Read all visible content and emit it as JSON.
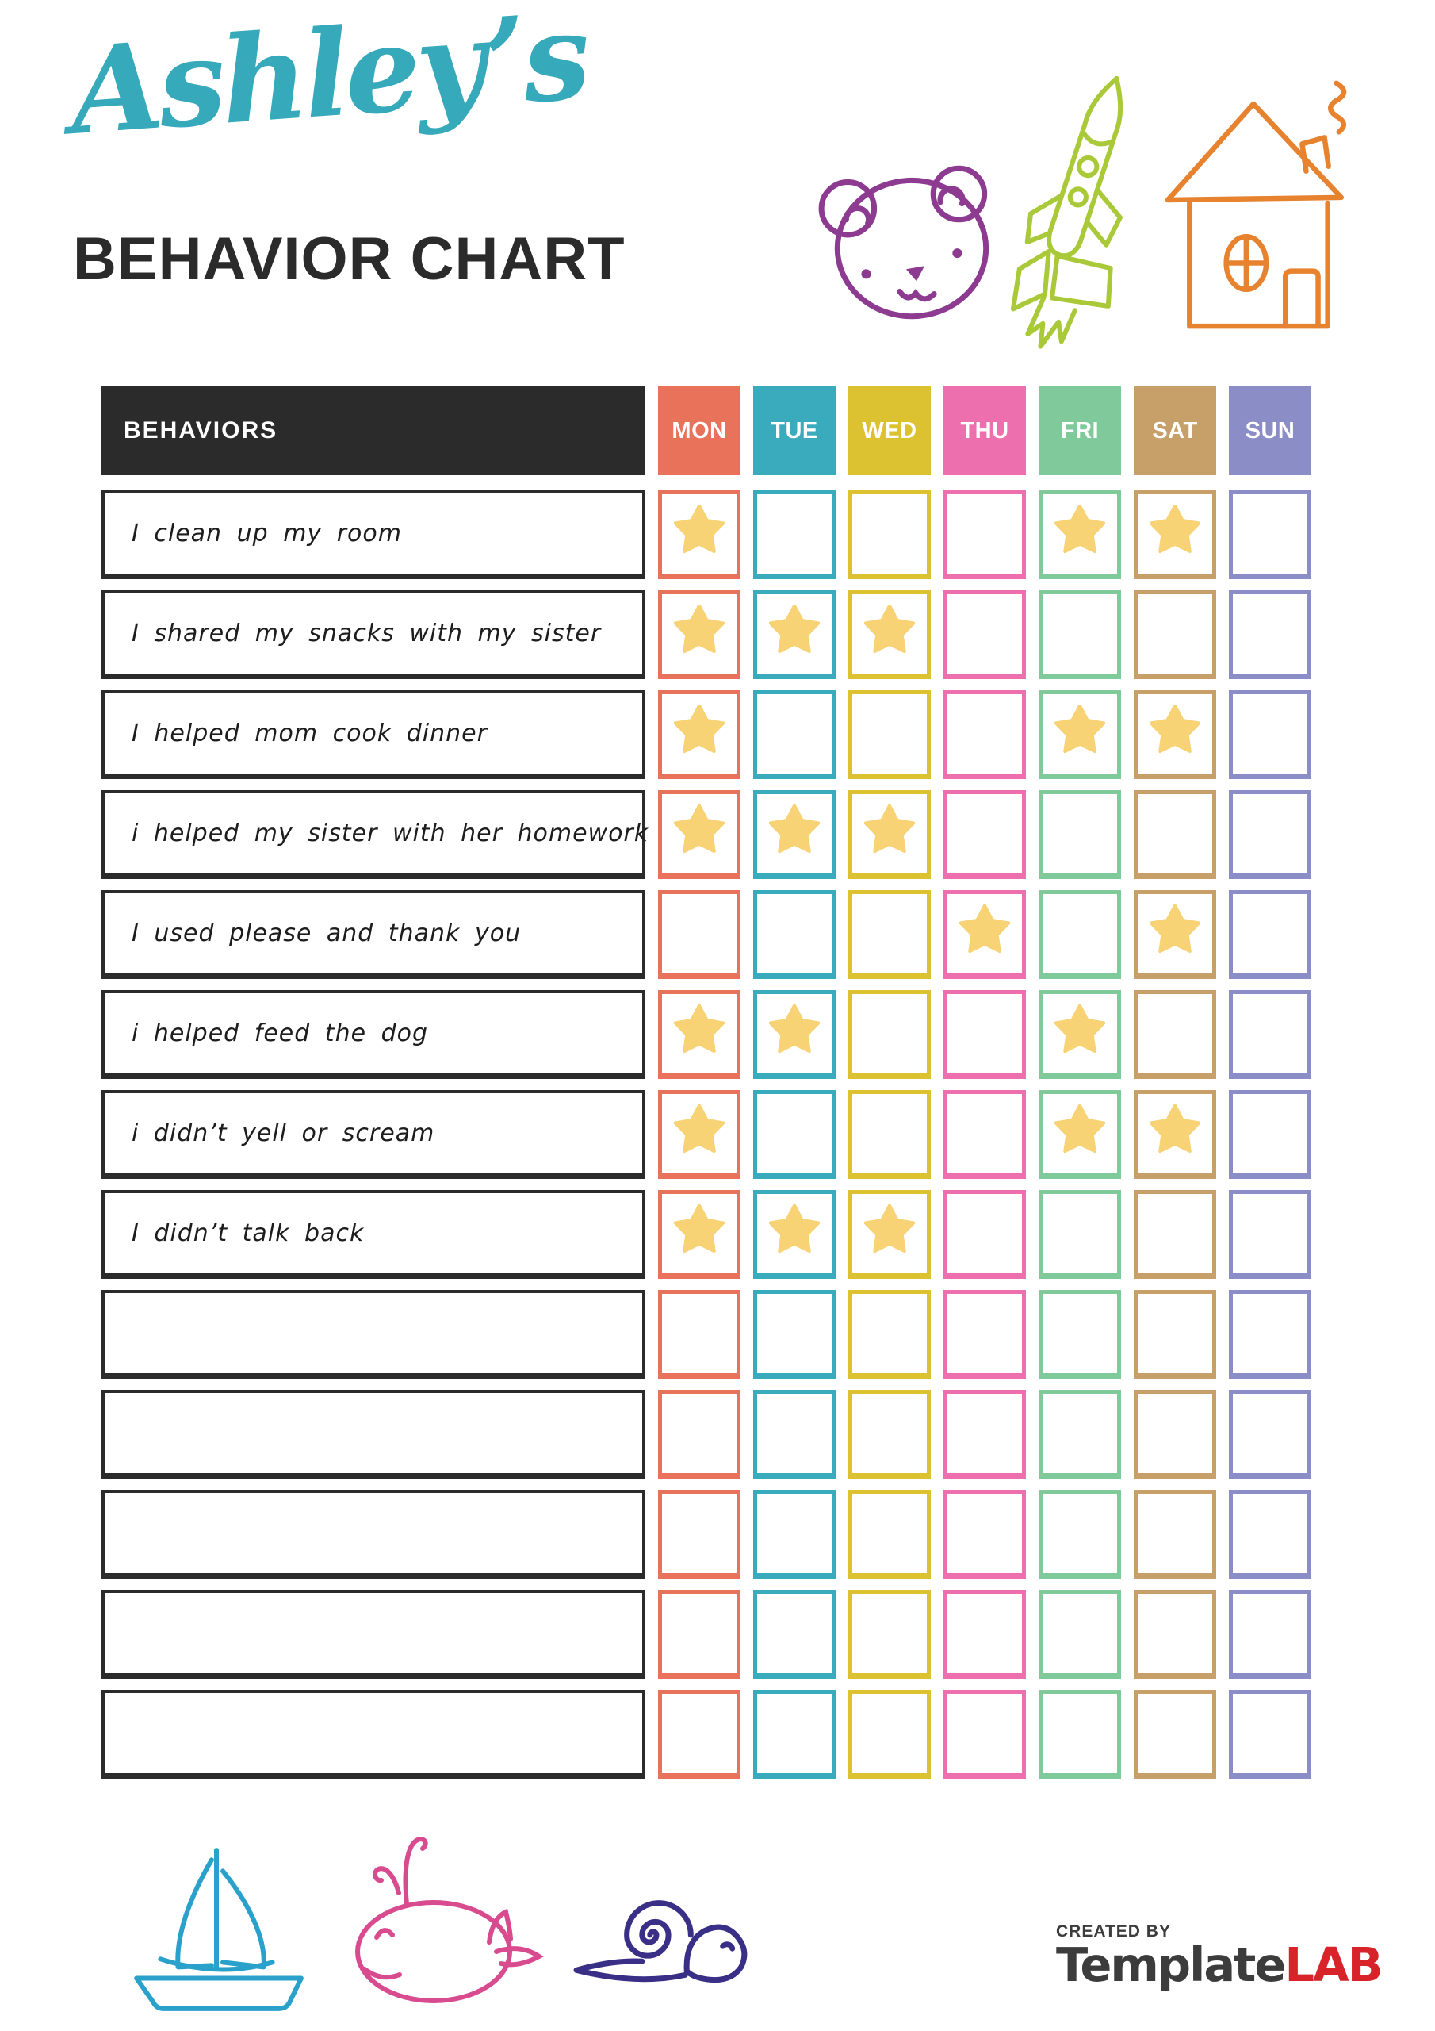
{
  "header": {
    "name": "Ashley’s",
    "title": "BEHAVIOR CHART"
  },
  "colors": {
    "title_teal": "#36a9ba",
    "ink": "#2b2b2b",
    "star": "#f7d375",
    "bear": "#8d3b91",
    "rocket": "#aac939",
    "house": "#e7822e",
    "boat": "#2aa1ca",
    "whale": "#d94b8f",
    "snail": "#3a2f86",
    "brand_dark": "#3c3c3c",
    "brand_red": "#d8232a"
  },
  "table": {
    "behaviors_header": "BEHAVIORS",
    "days": [
      {
        "label": "MON",
        "color": "#e8735a"
      },
      {
        "label": "TUE",
        "color": "#3aabbd"
      },
      {
        "label": "WED",
        "color": "#dcc230"
      },
      {
        "label": "THU",
        "color": "#ee6fad"
      },
      {
        "label": "FRI",
        "color": "#7fc99b"
      },
      {
        "label": "SAT",
        "color": "#c7a069"
      },
      {
        "label": "SUN",
        "color": "#8b8dc6"
      }
    ],
    "rows": [
      {
        "behavior": "I clean up my room",
        "stars": [
          1,
          0,
          0,
          0,
          1,
          1,
          0
        ]
      },
      {
        "behavior": "I shared my snacks with my sister",
        "stars": [
          1,
          1,
          1,
          0,
          0,
          0,
          0
        ]
      },
      {
        "behavior": "I helped mom cook dinner",
        "stars": [
          1,
          0,
          0,
          0,
          1,
          1,
          0
        ]
      },
      {
        "behavior": "i helped my sister with her homework",
        "stars": [
          1,
          1,
          1,
          0,
          0,
          0,
          0
        ]
      },
      {
        "behavior": "I used please and thank you",
        "stars": [
          0,
          0,
          0,
          1,
          0,
          1,
          0
        ]
      },
      {
        "behavior": "i helped feed the dog",
        "stars": [
          1,
          1,
          0,
          0,
          1,
          0,
          0
        ]
      },
      {
        "behavior": "i didn’t yell or scream",
        "stars": [
          1,
          0,
          0,
          0,
          1,
          1,
          0
        ]
      },
      {
        "behavior": "I didn’t talk back",
        "stars": [
          1,
          1,
          1,
          0,
          0,
          0,
          0
        ]
      },
      {
        "behavior": "",
        "stars": [
          0,
          0,
          0,
          0,
          0,
          0,
          0
        ]
      },
      {
        "behavior": "",
        "stars": [
          0,
          0,
          0,
          0,
          0,
          0,
          0
        ]
      },
      {
        "behavior": "",
        "stars": [
          0,
          0,
          0,
          0,
          0,
          0,
          0
        ]
      },
      {
        "behavior": "",
        "stars": [
          0,
          0,
          0,
          0,
          0,
          0,
          0
        ]
      },
      {
        "behavior": "",
        "stars": [
          0,
          0,
          0,
          0,
          0,
          0,
          0
        ]
      }
    ]
  },
  "decorations": {
    "top": [
      "bear-doodle",
      "rocket-doodle",
      "house-doodle"
    ],
    "bottom": [
      "sailboat-doodle",
      "whale-doodle",
      "snail-doodle"
    ]
  },
  "footer": {
    "created_by": "CREATED BY",
    "brand_name_dark": "Template",
    "brand_name_red": "LAB"
  }
}
